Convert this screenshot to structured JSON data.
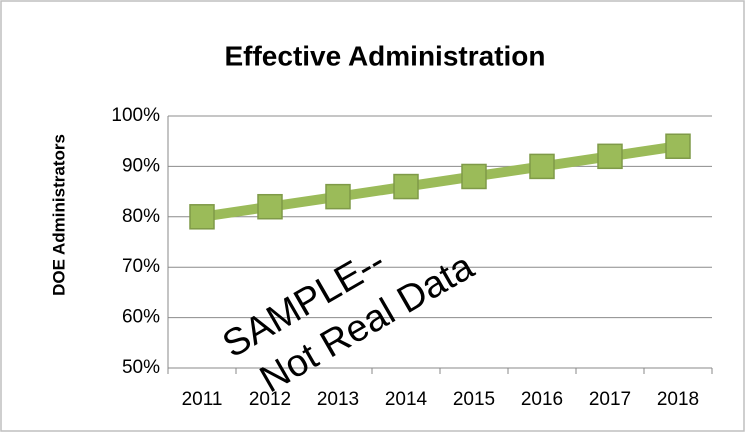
{
  "chart_data": {
    "type": "line",
    "title": "Effective Administration",
    "y_label": "DOE Administrators",
    "categories": [
      "2011",
      "2012",
      "2013",
      "2014",
      "2015",
      "2016",
      "2017",
      "2018"
    ],
    "series": [
      {
        "name": "DOE Administrators",
        "color": "#9bbb59",
        "values": [
          80,
          82,
          84,
          86,
          88,
          90,
          92,
          94
        ]
      }
    ],
    "ylim": [
      50,
      100
    ],
    "yticks": [
      {
        "value": 50,
        "label": "50%"
      },
      {
        "value": 60,
        "label": "60%"
      },
      {
        "value": 70,
        "label": "70%"
      },
      {
        "value": 80,
        "label": "80%"
      },
      {
        "value": 90,
        "label": "90%"
      },
      {
        "value": 100,
        "label": "100%"
      }
    ],
    "grid": true,
    "annotations": [
      "SAMPLE--",
      "Not Real Data"
    ]
  }
}
